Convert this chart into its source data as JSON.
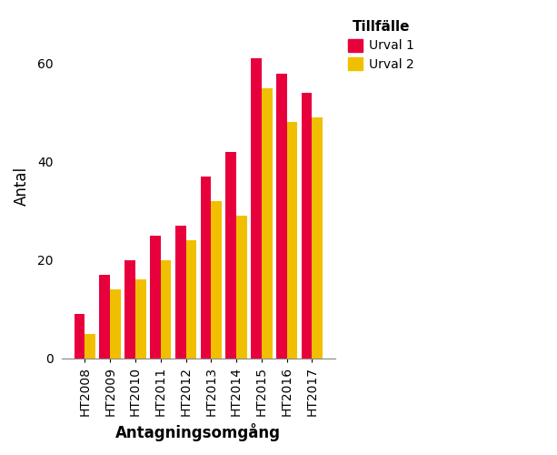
{
  "categories": [
    "HT2008",
    "HT2009",
    "HT2010",
    "HT2011",
    "HT2012",
    "HT2013",
    "HT2014",
    "HT2015",
    "HT2016",
    "HT2017"
  ],
  "urval1": [
    9,
    17,
    20,
    25,
    27,
    37,
    42,
    61,
    58,
    54
  ],
  "urval2": [
    5,
    14,
    16,
    20,
    24,
    32,
    29,
    55,
    48,
    49
  ],
  "color_urval1": "#E8003C",
  "color_urval2": "#F0C000",
  "xlabel": "Antagningsomgång",
  "ylabel": "Antal",
  "legend_title": "Tillfälle",
  "legend_labels": [
    "Urval 1",
    "Urval 2"
  ],
  "ylim": [
    0,
    70
  ],
  "yticks": [
    0,
    20,
    40,
    60
  ],
  "background_color": "#FFFFFF",
  "plot_bg_color": "#FFFFFF",
  "bar_width": 0.42,
  "grid": false
}
